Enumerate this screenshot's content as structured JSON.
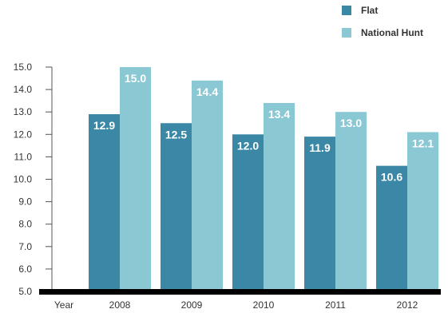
{
  "chart_data": {
    "type": "bar",
    "title": "",
    "xlabel": "Year",
    "ylabel": "",
    "categories": [
      "2008",
      "2009",
      "2010",
      "2011",
      "2012"
    ],
    "series": [
      {
        "name": "Flat",
        "color": "#3a87a6",
        "values": [
          12.9,
          12.5,
          12.0,
          11.9,
          10.6
        ]
      },
      {
        "name": "National Hunt",
        "color": "#8ac8d4",
        "values": [
          15.0,
          14.4,
          13.4,
          13.0,
          12.1
        ]
      }
    ],
    "data_labels": [
      [
        "12.9",
        "12.5",
        "12.0",
        "11.9",
        "10.6"
      ],
      [
        "15.0",
        "14.4",
        "13.4",
        "13.0",
        "12.1"
      ]
    ],
    "ylim": [
      5.0,
      15.0
    ],
    "yticks": [
      "5.0",
      "6.0",
      "7.0",
      "8.0",
      "9.0",
      "10.0",
      "11.0",
      "12.0",
      "13.0",
      "14.0",
      "15.0"
    ],
    "grid": false,
    "legend": "top-right",
    "baseline_color": "#000000"
  }
}
